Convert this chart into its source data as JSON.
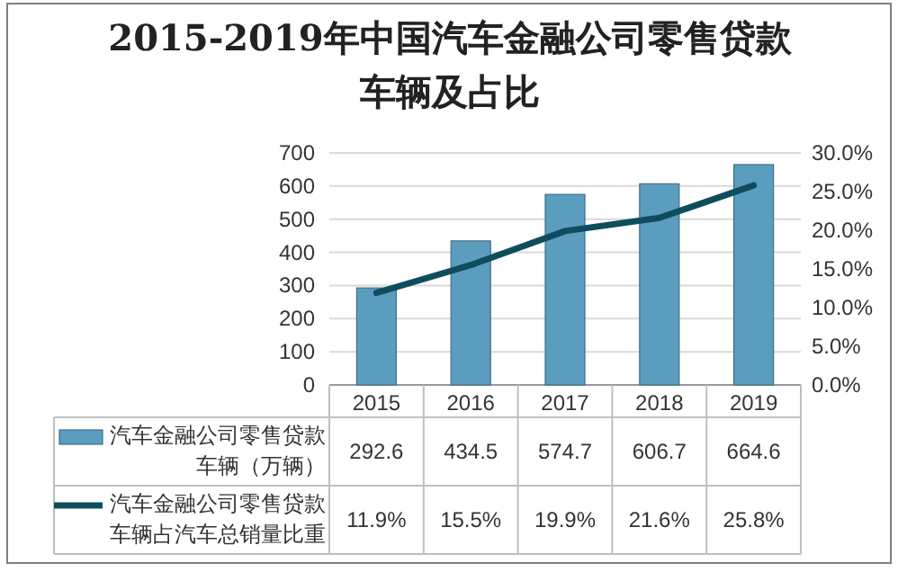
{
  "chart_data": {
    "type": "bar",
    "title": "2015-2019年中国汽车金融公司零售贷款车辆及占比",
    "categories": [
      "2015",
      "2016",
      "2017",
      "2018",
      "2019"
    ],
    "series": [
      {
        "name": "汽车金融公司零售贷款车辆（万辆）",
        "color": "#5b9dbf",
        "values": [
          292.6,
          434.5,
          574.7,
          606.7,
          664.6
        ],
        "value_labels": [
          "292.6",
          "434.5",
          "574.7",
          "606.7",
          "664.6"
        ]
      },
      {
        "name": "汽车金融公司零售贷款车辆占汽车总销量比重",
        "type": "line",
        "axis": "y2",
        "color": "#0f4c5e",
        "values": [
          11.9,
          15.5,
          19.9,
          21.6,
          25.8
        ],
        "value_labels": [
          "11.9%",
          "15.5%",
          "19.9%",
          "21.6%",
          "25.8%"
        ]
      }
    ],
    "ylim": [
      0,
      700
    ],
    "yticks": [
      0,
      100,
      200,
      300,
      400,
      500,
      600,
      700
    ],
    "y2lim": [
      0,
      30
    ],
    "y2ticks": [
      {
        "value": 0,
        "label": "0.0%"
      },
      {
        "value": 5,
        "label": "5.0%"
      },
      {
        "value": 10,
        "label": "10.0%"
      },
      {
        "value": 15,
        "label": "15.0%"
      },
      {
        "value": 20,
        "label": "20.0%"
      },
      {
        "value": 25,
        "label": "25.0%"
      },
      {
        "value": 30,
        "label": "30.0%"
      }
    ],
    "grid": "y",
    "legend": "bottom"
  }
}
